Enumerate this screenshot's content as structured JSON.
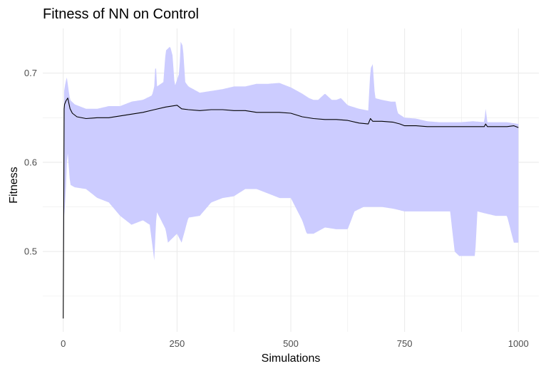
{
  "chart_data": {
    "type": "line",
    "title": "Fitness of NN on Control",
    "xlabel": "Simulations",
    "ylabel": "Fitness",
    "xlim": [
      -45,
      1045
    ],
    "ylim": [
      0.41,
      0.75
    ],
    "x_ticks": [
      0,
      250,
      500,
      750,
      1000
    ],
    "y_ticks": [
      0.5,
      0.6,
      0.7
    ],
    "grid": true,
    "legend": "none",
    "colors": {
      "band": "#ccccff",
      "line": "#000000",
      "grid": "#ebebeb"
    },
    "series": [
      {
        "role": "mean",
        "points": [
          [
            0,
            0.425
          ],
          [
            1,
            0.545
          ],
          [
            2,
            0.66
          ],
          [
            3,
            0.665
          ],
          [
            6,
            0.669
          ],
          [
            10,
            0.672
          ],
          [
            12,
            0.667
          ],
          [
            15,
            0.66
          ],
          [
            20,
            0.655
          ],
          [
            30,
            0.651
          ],
          [
            50,
            0.649
          ],
          [
            75,
            0.65
          ],
          [
            100,
            0.65
          ],
          [
            125,
            0.652
          ],
          [
            150,
            0.654
          ],
          [
            175,
            0.656
          ],
          [
            200,
            0.659
          ],
          [
            225,
            0.662
          ],
          [
            250,
            0.664
          ],
          [
            260,
            0.66
          ],
          [
            275,
            0.659
          ],
          [
            300,
            0.658
          ],
          [
            325,
            0.659
          ],
          [
            350,
            0.659
          ],
          [
            375,
            0.658
          ],
          [
            400,
            0.658
          ],
          [
            425,
            0.656
          ],
          [
            450,
            0.656
          ],
          [
            475,
            0.656
          ],
          [
            500,
            0.655
          ],
          [
            525,
            0.651
          ],
          [
            550,
            0.649
          ],
          [
            575,
            0.648
          ],
          [
            600,
            0.648
          ],
          [
            625,
            0.647
          ],
          [
            650,
            0.644
          ],
          [
            670,
            0.643
          ],
          [
            675,
            0.649
          ],
          [
            680,
            0.646
          ],
          [
            700,
            0.646
          ],
          [
            725,
            0.645
          ],
          [
            740,
            0.643
          ],
          [
            750,
            0.641
          ],
          [
            775,
            0.641
          ],
          [
            800,
            0.64
          ],
          [
            825,
            0.64
          ],
          [
            850,
            0.64
          ],
          [
            875,
            0.64
          ],
          [
            900,
            0.64
          ],
          [
            925,
            0.64
          ],
          [
            928,
            0.643
          ],
          [
            932,
            0.64
          ],
          [
            950,
            0.64
          ],
          [
            975,
            0.64
          ],
          [
            990,
            0.641
          ],
          [
            1000,
            0.639
          ]
        ]
      },
      {
        "role": "upper",
        "points": [
          [
            0,
            0.425
          ],
          [
            2,
            0.68
          ],
          [
            5,
            0.69
          ],
          [
            8,
            0.695
          ],
          [
            12,
            0.68
          ],
          [
            15,
            0.67
          ],
          [
            25,
            0.665
          ],
          [
            50,
            0.66
          ],
          [
            75,
            0.66
          ],
          [
            100,
            0.663
          ],
          [
            125,
            0.663
          ],
          [
            150,
            0.668
          ],
          [
            175,
            0.67
          ],
          [
            195,
            0.675
          ],
          [
            200,
            0.685
          ],
          [
            203,
            0.715
          ],
          [
            206,
            0.685
          ],
          [
            220,
            0.69
          ],
          [
            225,
            0.725
          ],
          [
            235,
            0.73
          ],
          [
            240,
            0.72
          ],
          [
            245,
            0.685
          ],
          [
            255,
            0.7
          ],
          [
            258,
            0.735
          ],
          [
            263,
            0.73
          ],
          [
            268,
            0.69
          ],
          [
            275,
            0.685
          ],
          [
            300,
            0.678
          ],
          [
            325,
            0.68
          ],
          [
            350,
            0.682
          ],
          [
            375,
            0.685
          ],
          [
            400,
            0.685
          ],
          [
            425,
            0.688
          ],
          [
            450,
            0.688
          ],
          [
            475,
            0.689
          ],
          [
            500,
            0.684
          ],
          [
            525,
            0.677
          ],
          [
            540,
            0.672
          ],
          [
            550,
            0.67
          ],
          [
            560,
            0.67
          ],
          [
            575,
            0.677
          ],
          [
            590,
            0.67
          ],
          [
            600,
            0.67
          ],
          [
            610,
            0.672
          ],
          [
            625,
            0.664
          ],
          [
            650,
            0.66
          ],
          [
            670,
            0.658
          ],
          [
            675,
            0.705
          ],
          [
            680,
            0.71
          ],
          [
            685,
            0.672
          ],
          [
            700,
            0.67
          ],
          [
            720,
            0.668
          ],
          [
            730,
            0.668
          ],
          [
            735,
            0.655
          ],
          [
            750,
            0.65
          ],
          [
            775,
            0.649
          ],
          [
            800,
            0.646
          ],
          [
            825,
            0.645
          ],
          [
            850,
            0.645
          ],
          [
            875,
            0.645
          ],
          [
            900,
            0.646
          ],
          [
            925,
            0.645
          ],
          [
            928,
            0.66
          ],
          [
            932,
            0.645
          ],
          [
            950,
            0.645
          ],
          [
            975,
            0.645
          ],
          [
            1000,
            0.643
          ]
        ]
      },
      {
        "role": "lower",
        "points": [
          [
            0,
            0.425
          ],
          [
            2,
            0.54
          ],
          [
            5,
            0.56
          ],
          [
            8,
            0.6
          ],
          [
            10,
            0.61
          ],
          [
            15,
            0.575
          ],
          [
            25,
            0.572
          ],
          [
            50,
            0.57
          ],
          [
            75,
            0.56
          ],
          [
            100,
            0.555
          ],
          [
            125,
            0.54
          ],
          [
            150,
            0.53
          ],
          [
            175,
            0.535
          ],
          [
            190,
            0.53
          ],
          [
            195,
            0.51
          ],
          [
            200,
            0.49
          ],
          [
            205,
            0.545
          ],
          [
            225,
            0.525
          ],
          [
            230,
            0.51
          ],
          [
            250,
            0.52
          ],
          [
            260,
            0.51
          ],
          [
            275,
            0.538
          ],
          [
            300,
            0.54
          ],
          [
            325,
            0.555
          ],
          [
            350,
            0.56
          ],
          [
            375,
            0.562
          ],
          [
            400,
            0.57
          ],
          [
            425,
            0.57
          ],
          [
            450,
            0.565
          ],
          [
            475,
            0.56
          ],
          [
            500,
            0.56
          ],
          [
            525,
            0.535
          ],
          [
            535,
            0.52
          ],
          [
            550,
            0.52
          ],
          [
            575,
            0.527
          ],
          [
            600,
            0.525
          ],
          [
            625,
            0.525
          ],
          [
            640,
            0.545
          ],
          [
            660,
            0.55
          ],
          [
            675,
            0.55
          ],
          [
            700,
            0.55
          ],
          [
            725,
            0.548
          ],
          [
            750,
            0.545
          ],
          [
            775,
            0.545
          ],
          [
            800,
            0.545
          ],
          [
            825,
            0.545
          ],
          [
            850,
            0.545
          ],
          [
            860,
            0.5
          ],
          [
            870,
            0.495
          ],
          [
            880,
            0.495
          ],
          [
            890,
            0.495
          ],
          [
            905,
            0.495
          ],
          [
            910,
            0.545
          ],
          [
            925,
            0.543
          ],
          [
            950,
            0.54
          ],
          [
            975,
            0.54
          ],
          [
            990,
            0.51
          ],
          [
            1000,
            0.51
          ]
        ]
      }
    ]
  }
}
